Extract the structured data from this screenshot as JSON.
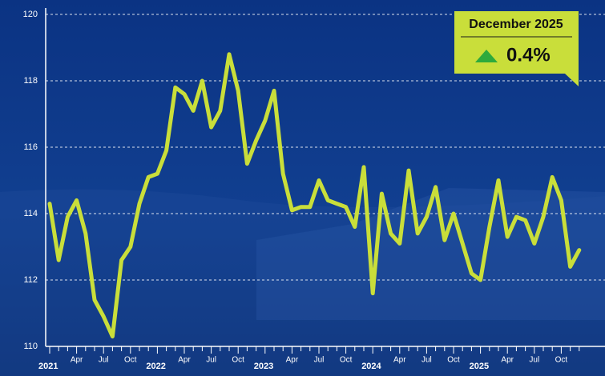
{
  "chart_data": {
    "type": "line",
    "categories": [
      "2021",
      null,
      null,
      "Apr",
      null,
      null,
      "Jul",
      null,
      null,
      "Oct",
      null,
      null,
      "2022",
      null,
      null,
      "Apr",
      null,
      null,
      "Jul",
      null,
      null,
      "Oct",
      null,
      null,
      "2023",
      null,
      null,
      "Apr",
      null,
      null,
      "Jul",
      null,
      null,
      "Oct",
      null,
      null,
      "2024",
      null,
      null,
      "Apr",
      null,
      null,
      "Jul",
      null,
      null,
      "Oct",
      null,
      null,
      "2025",
      null,
      null,
      "Apr",
      null,
      null,
      "Jul",
      null,
      null,
      "Oct",
      null,
      null
    ],
    "series": [
      {
        "color": "#c9de3a",
        "values": [
          114.3,
          112.6,
          113.9,
          114.4,
          113.4,
          111.4,
          110.9,
          110.3,
          112.6,
          113.0,
          114.3,
          115.1,
          115.2,
          115.9,
          117.8,
          117.6,
          117.1,
          118.0,
          116.6,
          117.1,
          118.8,
          117.7,
          115.5,
          116.2,
          116.8,
          117.7,
          115.2,
          114.1,
          114.2,
          114.2,
          115.0,
          114.4,
          114.3,
          114.2,
          113.6,
          115.4,
          111.6,
          114.6,
          113.4,
          113.1,
          115.3,
          113.4,
          113.9,
          114.8,
          113.2,
          114.0,
          113.1,
          112.2,
          112.0,
          113.6,
          115.0,
          113.3,
          113.9,
          113.8,
          113.1,
          113.9,
          115.1,
          114.4,
          112.4,
          112.9
        ]
      }
    ],
    "ylim": [
      110,
      120
    ],
    "yticks": [
      110,
      112,
      114,
      116,
      118,
      120
    ],
    "grid": true,
    "annotation": {
      "title": "December 2025",
      "change": "0.4%",
      "color": "#c9de3a",
      "arrow_color": "#2eaa3c"
    }
  }
}
